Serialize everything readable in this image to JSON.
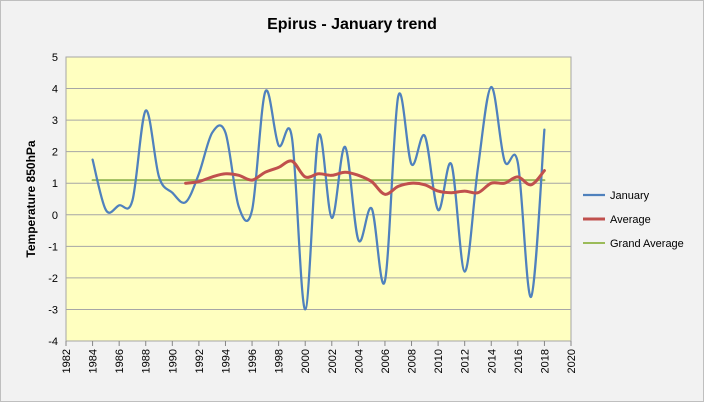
{
  "chart_data": {
    "type": "line",
    "title": "Epirus - January trend",
    "xlabel": "",
    "ylabel": "Temperature 850hPa",
    "xlim": [
      1982,
      2020
    ],
    "ylim": [
      -4,
      5
    ],
    "x_ticks": [
      "1982",
      "1984",
      "1986",
      "1988",
      "1990",
      "1992",
      "1994",
      "1996",
      "1998",
      "2000",
      "2002",
      "2004",
      "2006",
      "2008",
      "2010",
      "2012",
      "2014",
      "2016",
      "2018",
      "2020"
    ],
    "y_ticks": [
      "5",
      "4",
      "3",
      "2",
      "1",
      "0",
      "-1",
      "-2",
      "-3",
      "-4"
    ],
    "grid": "horizontal",
    "legend_position": "right",
    "plot_background": "#ffffc0",
    "series": [
      {
        "name": "January",
        "color": "#4f81bd",
        "x": [
          1984,
          1985,
          1986,
          1987,
          1988,
          1989,
          1990,
          1991,
          1992,
          1993,
          1994,
          1995,
          1996,
          1997,
          1998,
          1999,
          2000,
          2001,
          2002,
          2003,
          2004,
          2005,
          2006,
          2007,
          2008,
          2009,
          2010,
          2011,
          2012,
          2013,
          2014,
          2015,
          2016,
          2017,
          2018
        ],
        "values": [
          1.75,
          0.15,
          0.3,
          0.45,
          3.3,
          1.2,
          0.7,
          0.4,
          1.3,
          2.6,
          2.6,
          0.25,
          0.15,
          3.9,
          2.2,
          2.45,
          -3.0,
          2.5,
          -0.1,
          2.15,
          -0.8,
          0.2,
          -2.1,
          3.75,
          1.6,
          2.5,
          0.15,
          1.6,
          -1.8,
          1.5,
          4.05,
          1.7,
          1.65,
          -2.6,
          2.7
        ]
      },
      {
        "name": "Average",
        "color": "#c0504d",
        "x": [
          1991,
          1992,
          1993,
          1994,
          1995,
          1996,
          1997,
          1998,
          1999,
          2000,
          2001,
          2002,
          2003,
          2004,
          2005,
          2006,
          2007,
          2008,
          2009,
          2010,
          2011,
          2012,
          2013,
          2014,
          2015,
          2016,
          2017,
          2018
        ],
        "values": [
          1.0,
          1.05,
          1.2,
          1.3,
          1.25,
          1.1,
          1.35,
          1.5,
          1.7,
          1.2,
          1.3,
          1.25,
          1.35,
          1.25,
          1.05,
          0.65,
          0.9,
          1.0,
          0.95,
          0.75,
          0.7,
          0.75,
          0.7,
          1.0,
          1.0,
          1.2,
          0.95,
          1.4
        ]
      },
      {
        "name": "Grand Average",
        "color": "#9bbb59",
        "x": [
          1984,
          2018
        ],
        "values": [
          1.1,
          1.1
        ]
      }
    ]
  }
}
